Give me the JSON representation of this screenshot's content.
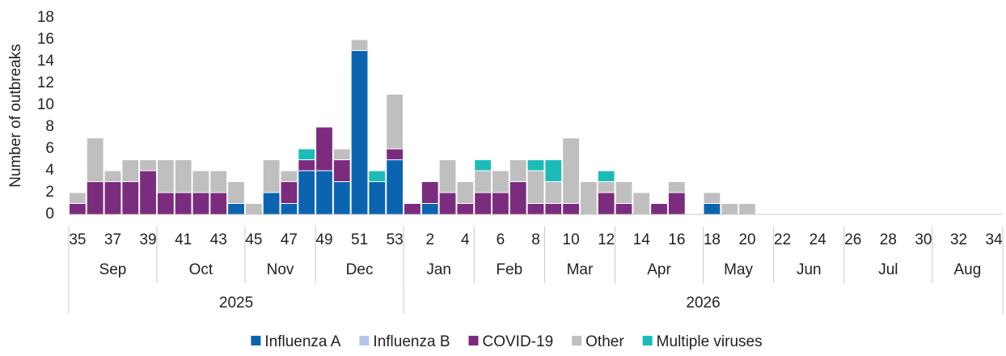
{
  "chart_data": {
    "type": "stacked_bar",
    "y_label": "Number of outbreaks",
    "categories": [
      "35",
      null,
      "37",
      null,
      "39",
      null,
      "41",
      null,
      "43",
      null,
      "45",
      null,
      "47",
      null,
      "49",
      null,
      "51",
      null,
      "53",
      null,
      "2",
      null,
      "4",
      null,
      "6",
      null,
      "8",
      null,
      "10",
      null,
      "12",
      null,
      "14",
      null,
      "16",
      null,
      "18",
      null,
      "20",
      null,
      "22",
      null,
      "24",
      null,
      "26",
      null,
      "28",
      null,
      "30",
      null,
      "32",
      null,
      "34"
    ],
    "month_groups": [
      {
        "label": "Sep",
        "weeks": 5
      },
      {
        "label": "Oct",
        "weeks": 5
      },
      {
        "label": "Nov",
        "weeks": 4
      },
      {
        "label": "Dec",
        "weeks": 5
      },
      {
        "label": "Jan",
        "weeks": 4
      },
      {
        "label": "Feb",
        "weeks": 4
      },
      {
        "label": "Mar",
        "weeks": 4
      },
      {
        "label": "Apr",
        "weeks": 5
      },
      {
        "label": "May",
        "weeks": 4
      },
      {
        "label": "Jun",
        "weeks": 4
      },
      {
        "label": "Jul",
        "weeks": 5
      },
      {
        "label": "Aug",
        "weeks": 4
      }
    ],
    "year_groups": [
      {
        "label": "2025",
        "weeks": 19
      },
      {
        "label": "2026",
        "weeks": 34
      }
    ],
    "series": [
      {
        "name": "Influenza A",
        "color": "#0b64b0",
        "values": [
          0,
          0,
          0,
          0,
          0,
          0,
          0,
          0,
          0,
          1,
          0,
          2,
          1,
          4,
          4,
          3,
          15,
          3,
          5,
          0,
          1,
          0,
          0,
          0,
          0,
          0,
          0,
          0,
          0,
          0,
          0,
          0,
          0,
          0,
          0,
          0,
          1,
          0,
          0,
          0,
          0,
          0,
          0,
          0,
          0,
          0,
          0,
          0,
          0,
          0,
          0,
          0,
          0
        ]
      },
      {
        "name": "Influenza B",
        "color": "#b4c7e7",
        "values": [
          0,
          0,
          0,
          0,
          0,
          0,
          0,
          0,
          0,
          0,
          0,
          0,
          0,
          0,
          0,
          0,
          0,
          0,
          0,
          0,
          0,
          0,
          0,
          0,
          0,
          0,
          0,
          0,
          0,
          0,
          0,
          0,
          0,
          0,
          0,
          0,
          0,
          0,
          0,
          0,
          0,
          0,
          0,
          0,
          0,
          0,
          0,
          0,
          0,
          0,
          0,
          0,
          0
        ]
      },
      {
        "name": "COVID-19",
        "color": "#7b2c7e",
        "values": [
          1,
          3,
          3,
          3,
          4,
          2,
          2,
          2,
          2,
          0,
          0,
          0,
          2,
          1,
          4,
          2,
          0,
          0,
          1,
          1,
          2,
          2,
          1,
          2,
          2,
          3,
          1,
          1,
          1,
          0,
          2,
          1,
          0,
          1,
          2,
          0,
          0,
          0,
          0,
          0,
          0,
          0,
          0,
          0,
          0,
          0,
          0,
          0,
          0,
          0,
          0,
          0,
          0
        ]
      },
      {
        "name": "Other",
        "color": "#bfbfbf",
        "values": [
          1,
          4,
          1,
          2,
          1,
          3,
          3,
          2,
          2,
          2,
          1,
          3,
          1,
          0,
          0,
          1,
          1,
          0,
          5,
          0,
          0,
          3,
          2,
          2,
          2,
          2,
          3,
          2,
          6,
          3,
          1,
          2,
          2,
          0,
          1,
          0,
          1,
          1,
          1,
          0,
          0,
          0,
          0,
          0,
          0,
          0,
          0,
          0,
          0,
          0,
          0,
          0,
          0
        ]
      },
      {
        "name": "Multiple viruses",
        "color": "#1bbcb8",
        "values": [
          0,
          0,
          0,
          0,
          0,
          0,
          0,
          0,
          0,
          0,
          0,
          0,
          0,
          1,
          0,
          0,
          0,
          1,
          0,
          0,
          0,
          0,
          0,
          1,
          0,
          0,
          1,
          2,
          0,
          0,
          1,
          0,
          0,
          0,
          0,
          0,
          0,
          0,
          0,
          0,
          0,
          0,
          0,
          0,
          0,
          0,
          0,
          0,
          0,
          0,
          0,
          0,
          0
        ]
      }
    ],
    "ylim": [
      0,
      18
    ],
    "yticks": [
      0,
      2,
      4,
      6,
      8,
      10,
      12,
      14,
      16,
      18
    ],
    "grid": false
  }
}
